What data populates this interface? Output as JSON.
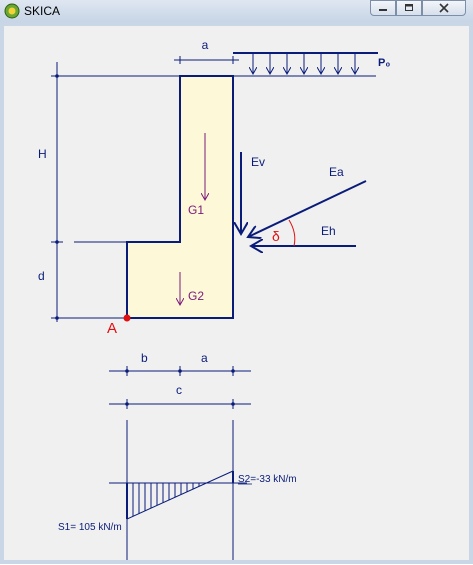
{
  "window": {
    "title": "SKICA"
  },
  "labels": {
    "a_top": "a",
    "p0": "P₀",
    "H": "H",
    "d": "d",
    "Ev": "Ev",
    "Ea": "Ea",
    "Eh": "Eh",
    "delta": "δ",
    "G1": "G1",
    "G2": "G2",
    "A": "A",
    "b": "b",
    "a_bottom": "a",
    "c": "c",
    "S1": "S1= 105 kN/m",
    "S2": "S2=-33 kN/m"
  },
  "colors": {
    "outline": "#0a1c7a",
    "wall_fill": "#fdf8d7",
    "force": "#7a1a7a",
    "accent": "#e01010",
    "canvas": "#f0f0f0"
  }
}
